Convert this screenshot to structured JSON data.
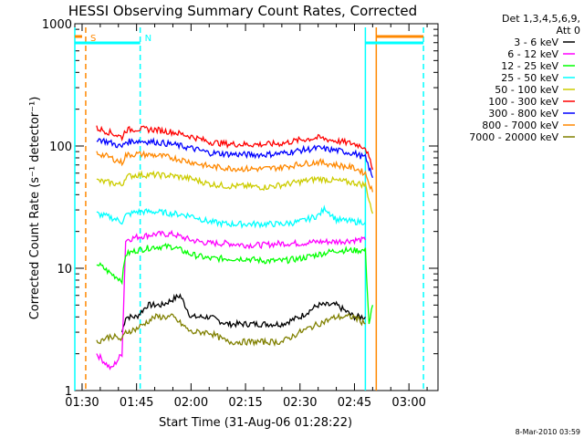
{
  "chart_data": {
    "type": "line",
    "title": "HESSI Observing Summary Count Rates, Corrected",
    "xlabel": "Start Time (31-Aug-06 01:28:22)",
    "ylabel": "Corrected Count Rate (s⁻¹ detector⁻¹)",
    "yscale": "log",
    "xlim": [
      "01:28",
      "03:08"
    ],
    "ylim": [
      1,
      1000
    ],
    "x_ticks": [
      "01:30",
      "01:45",
      "02:00",
      "02:15",
      "02:30",
      "02:45",
      "03:00"
    ],
    "y_ticks": [
      "1",
      "10",
      "100",
      "1000"
    ],
    "legend_header": [
      "Det 1,3,4,5,6,9,",
      "Att 0"
    ],
    "legend_position": "right",
    "markers": [
      {
        "time": "01:28",
        "color": "#00ffff",
        "style": "solid",
        "label": ""
      },
      {
        "time": "01:31",
        "color": "#ff8800",
        "style": "dashed",
        "label": "S"
      },
      {
        "time": "01:46",
        "color": "#00ffff",
        "style": "dashed",
        "label": "N"
      },
      {
        "time": "02:48",
        "color": "#00ffff",
        "style": "solid",
        "label": ""
      },
      {
        "time": "02:51",
        "color": "#ff8800",
        "style": "solid",
        "label": ""
      },
      {
        "time": "03:04",
        "color": "#00ffff",
        "style": "dashed",
        "label": ""
      }
    ],
    "top_bars": [
      {
        "from": "01:28",
        "to": "01:46",
        "color": "#00ffff"
      },
      {
        "from": "01:28",
        "to": "01:30",
        "color": "#ff8800"
      },
      {
        "from": "02:48",
        "to": "03:04",
        "color": "#00ffff"
      },
      {
        "from": "02:51",
        "to": "03:04",
        "color": "#ff8800"
      }
    ],
    "series": [
      {
        "name": "3 - 6 keV",
        "color": "#000000",
        "x": [
          "01:41",
          "01:42",
          "01:45",
          "01:48",
          "01:52",
          "01:57",
          "02:00",
          "02:05",
          "02:10",
          "02:15",
          "02:20",
          "02:25",
          "02:30",
          "02:35",
          "02:40",
          "02:45",
          "02:48"
        ],
        "y": [
          3,
          4,
          4,
          5,
          5,
          6,
          4,
          4,
          3.5,
          3.5,
          3.5,
          3.5,
          4,
          5,
          5,
          4,
          4
        ]
      },
      {
        "name": "6 - 12 keV",
        "color": "#ff00ff",
        "x": [
          "01:34",
          "01:38",
          "01:41",
          "01:42",
          "01:45",
          "01:50",
          "01:55",
          "02:00",
          "02:05",
          "02:10",
          "02:15",
          "02:20",
          "02:25",
          "02:30",
          "02:35",
          "02:40",
          "02:45",
          "02:48"
        ],
        "y": [
          2,
          1.5,
          2,
          17,
          18,
          19,
          19,
          17,
          16,
          16,
          15.5,
          15.5,
          16,
          16,
          16.5,
          16.5,
          17,
          17
        ]
      },
      {
        "name": "12 - 25 keV",
        "color": "#00ff00",
        "x": [
          "01:34",
          "01:36",
          "01:38",
          "01:41",
          "01:42",
          "01:45",
          "01:50",
          "01:55",
          "02:00",
          "02:05",
          "02:10",
          "02:15",
          "02:20",
          "02:25",
          "02:30",
          "02:35",
          "02:40",
          "02:45",
          "02:48",
          "02:49",
          "02:50"
        ],
        "y": [
          11,
          10,
          9,
          8,
          13,
          14,
          15,
          15,
          13,
          12,
          12,
          12,
          11.5,
          11.5,
          12,
          13,
          14,
          14,
          14,
          3.5,
          5
        ]
      },
      {
        "name": "25 - 50 keV",
        "color": "#00ffff",
        "x": [
          "01:34",
          "01:38",
          "01:41",
          "01:42",
          "01:45",
          "01:50",
          "01:55",
          "02:00",
          "02:05",
          "02:10",
          "02:15",
          "02:20",
          "02:25",
          "02:30",
          "02:35",
          "02:37",
          "02:40",
          "02:45",
          "02:48"
        ],
        "y": [
          28,
          26,
          24,
          27,
          29,
          29,
          28,
          27,
          24,
          23,
          23,
          23,
          23,
          24,
          27,
          31,
          25,
          24,
          24
        ]
      },
      {
        "name": "50 - 100 keV",
        "color": "#cccc00",
        "x": [
          "01:34",
          "01:38",
          "01:41",
          "01:42",
          "01:45",
          "01:50",
          "01:55",
          "02:00",
          "02:05",
          "02:10",
          "02:15",
          "02:20",
          "02:25",
          "02:30",
          "02:35",
          "02:40",
          "02:45",
          "02:48",
          "02:50"
        ],
        "y": [
          52,
          50,
          48,
          56,
          58,
          58,
          57,
          54,
          49,
          47,
          47,
          46,
          48,
          51,
          54,
          52,
          50,
          48,
          28
        ]
      },
      {
        "name": "100 - 300 keV",
        "color": "#ff0000",
        "x": [
          "01:34",
          "01:38",
          "01:41",
          "01:42",
          "01:45",
          "01:50",
          "01:55",
          "02:00",
          "02:05",
          "02:10",
          "02:15",
          "02:20",
          "02:25",
          "02:30",
          "02:35",
          "02:40",
          "02:45",
          "02:48",
          "02:50"
        ],
        "y": [
          140,
          128,
          118,
          135,
          138,
          136,
          130,
          120,
          108,
          104,
          103,
          103,
          105,
          112,
          117,
          110,
          104,
          98,
          64
        ]
      },
      {
        "name": "300 - 800 keV",
        "color": "#0000ff",
        "x": [
          "01:34",
          "01:38",
          "01:41",
          "01:42",
          "01:45",
          "01:50",
          "01:55",
          "02:00",
          "02:05",
          "02:10",
          "02:15",
          "02:20",
          "02:25",
          "02:30",
          "02:35",
          "02:40",
          "02:45",
          "02:48",
          "02:50"
        ],
        "y": [
          115,
          106,
          98,
          108,
          110,
          108,
          103,
          96,
          88,
          86,
          85,
          85,
          87,
          92,
          96,
          92,
          87,
          80,
          55
        ]
      },
      {
        "name": "800 - 7000 keV",
        "color": "#ff8800",
        "x": [
          "01:34",
          "01:38",
          "01:41",
          "01:42",
          "01:45",
          "01:50",
          "01:55",
          "02:00",
          "02:05",
          "02:10",
          "02:15",
          "02:20",
          "02:25",
          "02:30",
          "02:35",
          "02:40",
          "02:45",
          "02:48",
          "02:50"
        ],
        "y": [
          88,
          80,
          73,
          84,
          86,
          84,
          80,
          74,
          68,
          66,
          65,
          65,
          67,
          71,
          74,
          70,
          66,
          60,
          42
        ]
      },
      {
        "name": "7000 - 20000 keV",
        "color": "#808000",
        "x": [
          "01:34",
          "01:38",
          "01:41",
          "01:42",
          "01:45",
          "01:50",
          "01:55",
          "02:00",
          "02:05",
          "02:10",
          "02:15",
          "02:20",
          "02:25",
          "02:30",
          "02:35",
          "02:40",
          "02:45",
          "02:48"
        ],
        "y": [
          2.5,
          2.8,
          2.6,
          3,
          3.2,
          4,
          4,
          3,
          3,
          2.5,
          2.5,
          2.5,
          2.5,
          3,
          3.5,
          4,
          4,
          3.5
        ]
      }
    ],
    "footer_date": "8-Mar-2010 03:59"
  }
}
